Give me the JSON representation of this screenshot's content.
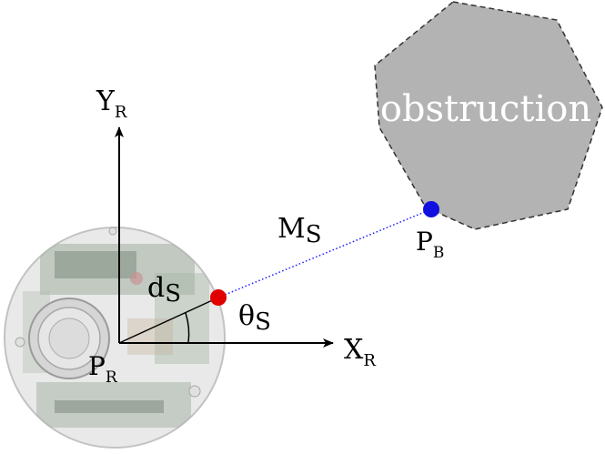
{
  "labels": {
    "y_axis": {
      "main": "Y",
      "sub": "R"
    },
    "x_axis": {
      "main": "X",
      "sub": "R"
    },
    "robot_point": {
      "main": "P",
      "sub": "R"
    },
    "obstacle_point": {
      "main": "P",
      "sub": "B"
    },
    "sensor_distance": {
      "main": "d",
      "sub": "S"
    },
    "measurement": {
      "main": "M",
      "sub": "S"
    },
    "sensor_angle": {
      "main": "θ",
      "sub": "S"
    },
    "obstruction": "obstruction"
  },
  "colors": {
    "sensor_point": "#e00000",
    "obstacle_point": "#1010e0",
    "measurement_line": "#1a1aff",
    "obstruction_fill": "#b3b3b3",
    "robot_body": "#e6e6e6"
  }
}
